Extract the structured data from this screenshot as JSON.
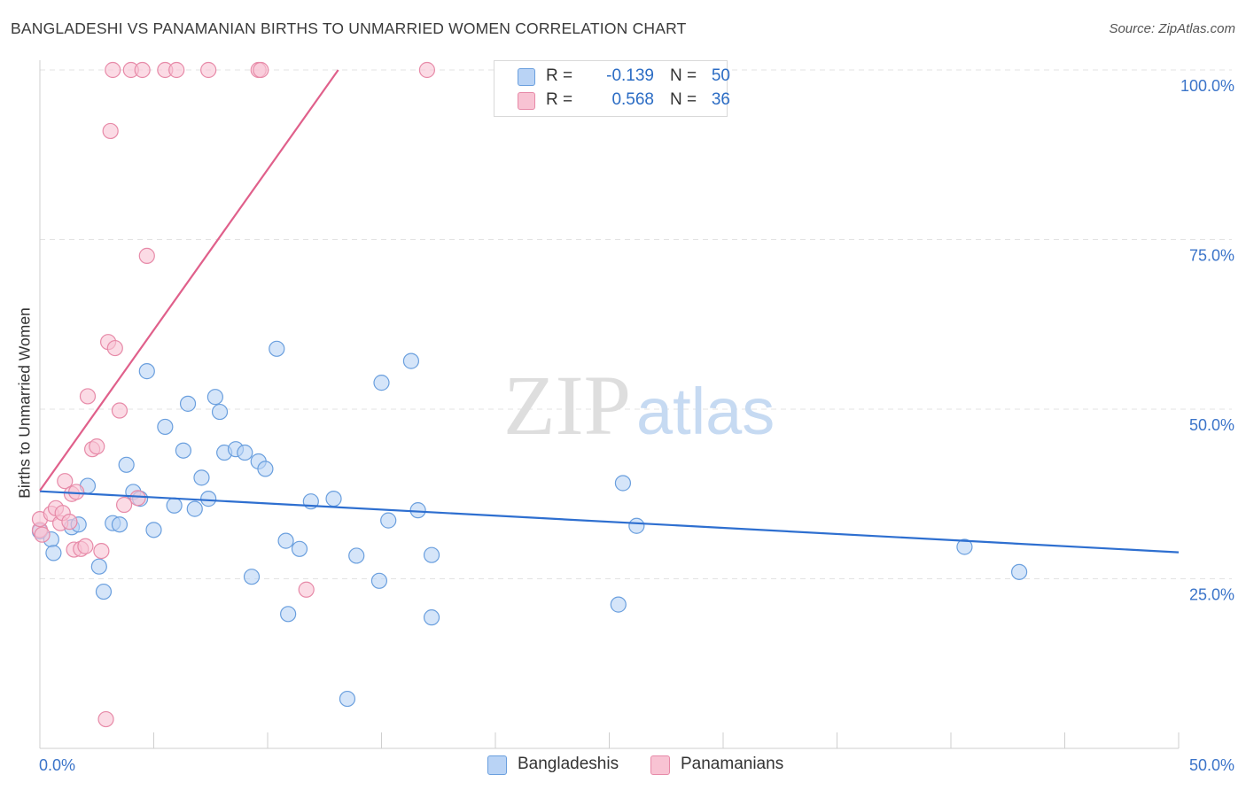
{
  "title": "BANGLADESHI VS PANAMANIAN BIRTHS TO UNMARRIED WOMEN CORRELATION CHART",
  "source": "Source: ZipAtlas.com",
  "watermark": {
    "zip": "ZIP",
    "atlas": "atlas"
  },
  "legend": {
    "rows": [
      {
        "r_label": "R =",
        "r_value": "-0.139",
        "n_label": "N =",
        "n_value": "50"
      },
      {
        "r_label": "R =",
        "r_value": "0.568",
        "n_label": "N =",
        "n_value": "36"
      }
    ],
    "bottom": [
      "Bangladeshis",
      "Panamanians"
    ]
  },
  "colors": {
    "series_blue_fill": "#b9d3f5",
    "series_blue_stroke": "#6a9fde",
    "series_blue_line": "#2e6fd0",
    "series_pink_fill": "#f8c3d3",
    "series_pink_stroke": "#e78aa8",
    "series_pink_line": "#e0608b",
    "axis_value_text": "#3b74c9",
    "grid": "#e3e3e3"
  },
  "chart_data": {
    "type": "scatter",
    "title": "BANGLADESHI VS PANAMANIAN BIRTHS TO UNMARRIED WOMEN CORRELATION CHART",
    "xlabel": "",
    "ylabel": "Births to Unmarried Women",
    "xlim": [
      0,
      50
    ],
    "ylim": [
      0,
      100
    ],
    "x_tick_labels": [
      "0.0%",
      "50.0%"
    ],
    "y_tick_labels": [
      "25.0%",
      "50.0%",
      "75.0%",
      "100.0%"
    ],
    "y_ticks": [
      25,
      50,
      75,
      100
    ],
    "grid": true,
    "series": [
      {
        "name": "Bangladeshis",
        "points": [
          [
            0.0,
            32.0
          ],
          [
            0.5,
            30.8
          ],
          [
            0.6,
            28.8
          ],
          [
            1.4,
            32.6
          ],
          [
            1.7,
            33.0
          ],
          [
            2.1,
            38.7
          ],
          [
            2.6,
            26.8
          ],
          [
            2.8,
            23.1
          ],
          [
            3.2,
            33.2
          ],
          [
            3.5,
            33.0
          ],
          [
            3.8,
            41.8
          ],
          [
            4.1,
            37.8
          ],
          [
            4.4,
            36.8
          ],
          [
            4.7,
            55.6
          ],
          [
            5.0,
            32.2
          ],
          [
            5.5,
            47.4
          ],
          [
            5.9,
            35.8
          ],
          [
            6.3,
            43.9
          ],
          [
            6.5,
            50.8
          ],
          [
            6.8,
            35.3
          ],
          [
            7.1,
            39.9
          ],
          [
            7.4,
            36.8
          ],
          [
            7.7,
            51.8
          ],
          [
            7.9,
            49.6
          ],
          [
            8.1,
            43.6
          ],
          [
            8.6,
            44.1
          ],
          [
            9.0,
            43.6
          ],
          [
            9.3,
            25.3
          ],
          [
            9.6,
            42.3
          ],
          [
            9.9,
            41.2
          ],
          [
            10.4,
            58.9
          ],
          [
            10.8,
            30.6
          ],
          [
            10.9,
            19.8
          ],
          [
            11.4,
            29.4
          ],
          [
            11.9,
            36.4
          ],
          [
            12.9,
            36.8
          ],
          [
            13.5,
            7.3
          ],
          [
            13.9,
            28.4
          ],
          [
            14.9,
            24.7
          ],
          [
            15.0,
            53.9
          ],
          [
            15.3,
            33.6
          ],
          [
            16.3,
            57.1
          ],
          [
            16.6,
            35.1
          ],
          [
            17.2,
            28.5
          ],
          [
            17.2,
            19.3
          ],
          [
            25.4,
            21.2
          ],
          [
            25.6,
            39.1
          ],
          [
            26.2,
            32.8
          ],
          [
            40.6,
            29.7
          ],
          [
            43.0,
            26.0
          ]
        ]
      },
      {
        "name": "Panamanians",
        "points": [
          [
            0.0,
            32.2
          ],
          [
            0.0,
            33.8
          ],
          [
            0.1,
            31.5
          ],
          [
            0.5,
            34.6
          ],
          [
            0.7,
            35.4
          ],
          [
            0.9,
            33.2
          ],
          [
            1.0,
            34.7
          ],
          [
            1.1,
            39.4
          ],
          [
            1.3,
            33.4
          ],
          [
            1.4,
            37.5
          ],
          [
            1.5,
            29.3
          ],
          [
            1.6,
            37.8
          ],
          [
            1.8,
            29.4
          ],
          [
            2.0,
            29.8
          ],
          [
            2.1,
            51.9
          ],
          [
            2.3,
            44.1
          ],
          [
            2.5,
            44.5
          ],
          [
            2.7,
            29.1
          ],
          [
            2.9,
            4.3
          ],
          [
            3.0,
            59.9
          ],
          [
            3.1,
            91.0
          ],
          [
            3.2,
            100.0
          ],
          [
            3.3,
            59.0
          ],
          [
            3.5,
            49.8
          ],
          [
            3.7,
            35.9
          ],
          [
            4.0,
            100.0
          ],
          [
            4.5,
            100.0
          ],
          [
            4.7,
            72.6
          ],
          [
            5.5,
            100.0
          ],
          [
            6.0,
            100.0
          ],
          [
            7.4,
            100.0
          ],
          [
            9.6,
            100.0
          ],
          [
            9.7,
            100.0
          ],
          [
            11.7,
            23.4
          ],
          [
            17.0,
            100.0
          ],
          [
            4.3,
            36.9
          ]
        ]
      }
    ],
    "trend_lines": [
      {
        "name": "Bangladeshis",
        "from": [
          0.0,
          37.9
        ],
        "to": [
          50.0,
          28.9
        ]
      },
      {
        "name": "Panamanians",
        "from": [
          0.0,
          38.0
        ],
        "to": [
          13.1,
          100.0
        ]
      }
    ]
  }
}
